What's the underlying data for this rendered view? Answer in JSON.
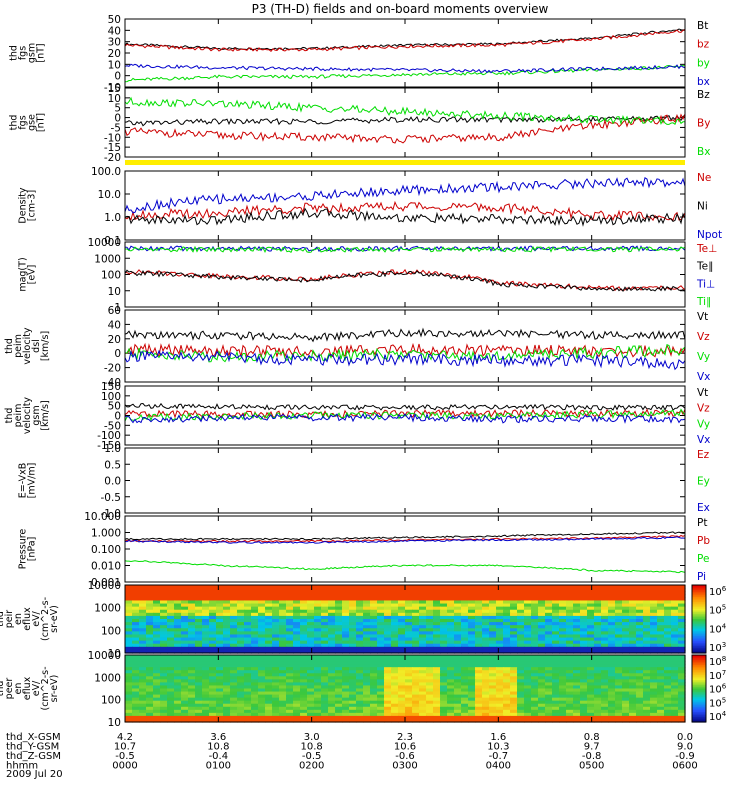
{
  "title": "P3 (TH-D) fields and on-board moments overview",
  "date_label": "2009 Jul 20",
  "chart_data": [
    {
      "panel": "fgs_gsm",
      "type": "line",
      "ylabel": [
        "thd",
        "fgs",
        "gsm",
        "[nT]"
      ],
      "ylim": [
        -10,
        50
      ],
      "yticks": [
        "50",
        "40",
        "30",
        "20",
        "10",
        "0",
        "-10"
      ],
      "x": [
        0,
        1,
        2,
        3,
        4,
        5,
        6
      ],
      "series": [
        {
          "name": "Bt",
          "color": "#000000",
          "values": [
            28,
            24,
            24,
            27,
            28,
            33,
            41
          ]
        },
        {
          "name": "bz",
          "color": "#cc0000",
          "values": [
            27,
            23,
            23,
            26,
            27,
            32,
            40
          ]
        },
        {
          "name": "by",
          "color": "#00dd00",
          "values": [
            -4,
            -1,
            -1,
            1,
            2,
            5,
            8
          ]
        },
        {
          "name": "bx",
          "color": "#0000cc",
          "values": [
            9,
            7,
            6,
            5,
            4,
            6,
            8
          ]
        }
      ]
    },
    {
      "panel": "fgs_gse",
      "type": "line",
      "ylabel": [
        "thd",
        "fgs",
        "gse",
        "[nT]"
      ],
      "ylim": [
        -20,
        15
      ],
      "yticks": [
        "15",
        "10",
        "5",
        "0",
        "-5",
        "-10",
        "-15",
        "-20"
      ],
      "x": [
        0,
        1,
        2,
        3,
        4,
        5,
        6
      ],
      "series": [
        {
          "name": "Bz",
          "color": "#000000",
          "values": [
            -3,
            -2,
            -2,
            -1,
            -1,
            -1,
            0
          ]
        },
        {
          "name": "By",
          "color": "#cc0000",
          "values": [
            -7,
            -9,
            -10,
            -11,
            -10,
            -4,
            0
          ]
        },
        {
          "name": "Bx",
          "color": "#00dd00",
          "values": [
            8,
            7,
            5,
            3,
            1,
            -1,
            -2
          ]
        }
      ]
    },
    {
      "panel": "density",
      "type": "line",
      "scale": "log",
      "ylabel": [
        "Density",
        "[cm-3]"
      ],
      "ylim": [
        0.1,
        100
      ],
      "yticks": [
        "100.0",
        "10.0",
        "1.0",
        "0.1"
      ],
      "x": [
        0,
        1,
        2,
        3,
        4,
        5,
        6
      ],
      "series": [
        {
          "name": "Ne",
          "color": "#cc0000",
          "values": [
            1.2,
            1.5,
            2.5,
            3,
            2.5,
            1.2,
            1.0
          ]
        },
        {
          "name": "Ni",
          "color": "#000000",
          "values": [
            0.8,
            0.7,
            1.5,
            0.9,
            0.8,
            0.7,
            0.9
          ]
        },
        {
          "name": "Npot",
          "color": "#0000cc",
          "values": [
            2,
            6,
            8,
            14,
            20,
            30,
            35
          ]
        }
      ]
    },
    {
      "panel": "temperature",
      "type": "line",
      "scale": "log",
      "ylabel": [
        "mag(T)",
        "[eV]"
      ],
      "ylim": [
        1,
        10000
      ],
      "yticks": [
        "10000",
        "1000",
        "100",
        "10",
        "1"
      ],
      "x": [
        0,
        1,
        2,
        3,
        4,
        5,
        6
      ],
      "series": [
        {
          "name": "Te⊥",
          "color": "#cc0000",
          "values": [
            150,
            80,
            50,
            150,
            30,
            15,
            15
          ]
        },
        {
          "name": "Te∥",
          "color": "#000000",
          "values": [
            130,
            70,
            45,
            130,
            25,
            13,
            13
          ]
        },
        {
          "name": "Ti⊥",
          "color": "#0000cc",
          "values": [
            4000,
            4000,
            3800,
            4000,
            4000,
            4000,
            4000
          ]
        },
        {
          "name": "Ti∥",
          "color": "#00dd00",
          "values": [
            3500,
            3500,
            3200,
            3500,
            3500,
            3500,
            3500
          ]
        }
      ]
    },
    {
      "panel": "peim_velocity_dsl",
      "type": "line",
      "ylabel": [
        "thd",
        "peim",
        "velocity",
        "dsl",
        "[km/s]"
      ],
      "ylim": [
        -40,
        60
      ],
      "yticks": [
        "60",
        "40",
        "20",
        "0",
        "-20",
        "-40"
      ],
      "x": [
        0,
        1,
        2,
        3,
        4,
        5,
        6
      ],
      "series": [
        {
          "name": "Vt",
          "color": "#000000",
          "values": [
            25,
            25,
            22,
            28,
            28,
            25,
            25
          ]
        },
        {
          "name": "Vz",
          "color": "#cc0000",
          "values": [
            5,
            3,
            2,
            5,
            4,
            3,
            3
          ]
        },
        {
          "name": "Vy",
          "color": "#00dd00",
          "values": [
            0,
            -5,
            -3,
            -2,
            -3,
            0,
            5
          ]
        },
        {
          "name": "Vx",
          "color": "#0000cc",
          "values": [
            -5,
            -5,
            -10,
            -8,
            -10,
            -10,
            -15
          ]
        }
      ]
    },
    {
      "panel": "peim_velocity_gsm",
      "type": "line",
      "ylabel": [
        "thd",
        "peim",
        "velocity",
        "gsm",
        "[km/s]"
      ],
      "ylim": [
        -150,
        150
      ],
      "yticks": [
        "150",
        "100",
        "50",
        "0",
        "-50",
        "-100",
        "-150"
      ],
      "x": [
        0,
        1,
        2,
        3,
        4,
        5,
        6
      ],
      "series": [
        {
          "name": "Vt",
          "color": "#000000",
          "values": [
            50,
            45,
            40,
            40,
            45,
            40,
            40
          ]
        },
        {
          "name": "Vz",
          "color": "#cc0000",
          "values": [
            10,
            5,
            5,
            10,
            10,
            10,
            15
          ]
        },
        {
          "name": "Vy",
          "color": "#00dd00",
          "values": [
            -10,
            -5,
            0,
            0,
            0,
            5,
            15
          ]
        },
        {
          "name": "Vx",
          "color": "#0000cc",
          "values": [
            -20,
            -15,
            -10,
            -10,
            -20,
            -15,
            -20
          ]
        }
      ]
    },
    {
      "panel": "efield",
      "type": "line",
      "ylabel": [
        "E=-VxB",
        "[mV/m]"
      ],
      "ylim": [
        -1,
        1
      ],
      "yticks": [
        "1.0",
        "0.5",
        "0.0",
        "-0.5",
        "-1.0"
      ],
      "series": [
        {
          "name": "Ez",
          "color": "#cc0000",
          "values": []
        },
        {
          "name": "Ey",
          "color": "#00dd00",
          "values": []
        },
        {
          "name": "Ex",
          "color": "#0000cc",
          "values": []
        }
      ]
    },
    {
      "panel": "pressure",
      "type": "line",
      "scale": "log",
      "ylabel": [
        "Pressure",
        "[nPa]"
      ],
      "ylim": [
        0.001,
        10
      ],
      "yticks": [
        "10.000",
        "1.000",
        "0.100",
        "0.010",
        "0.001"
      ],
      "x": [
        0,
        1,
        2,
        3,
        4,
        5,
        6
      ],
      "series": [
        {
          "name": "Pt",
          "color": "#000000",
          "values": [
            0.4,
            0.4,
            0.4,
            0.5,
            0.6,
            0.8,
            1.0
          ]
        },
        {
          "name": "Pb",
          "color": "#cc0000",
          "values": [
            0.3,
            0.3,
            0.3,
            0.35,
            0.4,
            0.45,
            0.6
          ]
        },
        {
          "name": "Pe",
          "color": "#00dd00",
          "values": [
            0.02,
            0.01,
            0.006,
            0.01,
            0.01,
            0.005,
            0.004
          ]
        },
        {
          "name": "Pi",
          "color": "#0000cc",
          "values": [
            0.3,
            0.25,
            0.25,
            0.3,
            0.35,
            0.4,
            0.5
          ]
        }
      ]
    },
    {
      "panel": "peir_spectrogram",
      "type": "heatmap",
      "ylabel": [
        "thd",
        "peir",
        "en",
        "eflux",
        "eV/",
        "(cm^2-s-",
        "sr-eV)"
      ],
      "yticks": [
        "10000",
        "1000",
        "100",
        "10"
      ],
      "colorbar_ticks": [
        "10^6",
        "10^5",
        "10^4",
        "10^3"
      ]
    },
    {
      "panel": "peer_spectrogram",
      "type": "heatmap",
      "ylabel": [
        "thd",
        "peer",
        "en",
        "eflux",
        "eV/",
        "(cm^2-s-",
        "sr-eV)"
      ],
      "yticks": [
        "10000",
        "1000",
        "100",
        "10"
      ],
      "colorbar_ticks": [
        "10^8",
        "10^7",
        "10^6",
        "10^5",
        "10^4"
      ]
    }
  ],
  "time_axis": {
    "row_labels": [
      "thd_X-GSM",
      "thd_Y-GSM",
      "thd_Z-GSM",
      "hhmm"
    ],
    "columns": [
      [
        "4.2",
        "10.7",
        "-0.5",
        "0000"
      ],
      [
        "3.6",
        "10.8",
        "-0.4",
        "0100"
      ],
      [
        "3.0",
        "10.8",
        "-0.5",
        "0200"
      ],
      [
        "2.3",
        "10.6",
        "-0.6",
        "0300"
      ],
      [
        "1.6",
        "10.3",
        "-0.7",
        "0400"
      ],
      [
        "0.8",
        "9.7",
        "-0.8",
        "0500"
      ],
      [
        "0.0",
        "9.0",
        "-0.9",
        "0600"
      ]
    ]
  }
}
